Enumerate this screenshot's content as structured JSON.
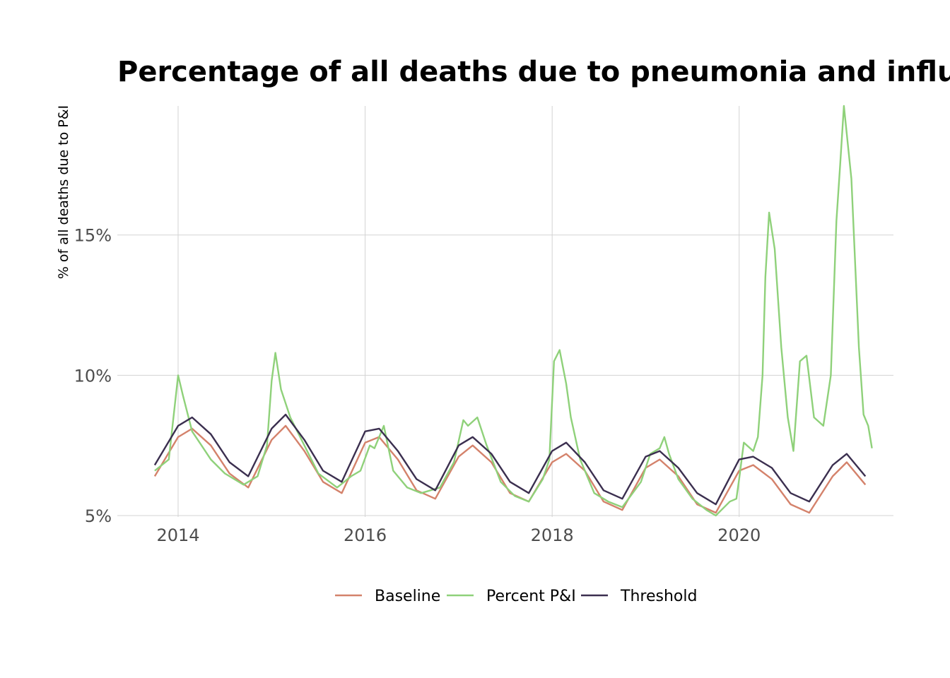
{
  "chart_data": {
    "type": "line",
    "title": "Percentage of all deaths due to pneumonia and influenza, National",
    "xlabel": "",
    "ylabel": "% of all deaths due to P&I",
    "xlim": [
      2013.35,
      2021.65
    ],
    "ylim": [
      4.95,
      19.6
    ],
    "x_ticks": [
      2014,
      2016,
      2018,
      2020
    ],
    "x_tick_labels": [
      "2014",
      "2016",
      "2018",
      "2020"
    ],
    "y_ticks": [
      5,
      10,
      15
    ],
    "y_tick_labels": [
      "5%",
      "10%",
      "15%"
    ],
    "grid": true,
    "legend_position": "bottom",
    "series": [
      {
        "name": "Baseline",
        "color": "#d4826b",
        "x": [
          2013.75,
          2014.0,
          2014.15,
          2014.35,
          2014.55,
          2014.75,
          2015.0,
          2015.15,
          2015.35,
          2015.55,
          2015.75,
          2016.0,
          2016.15,
          2016.35,
          2016.55,
          2016.75,
          2017.0,
          2017.15,
          2017.35,
          2017.55,
          2017.75,
          2018.0,
          2018.15,
          2018.35,
          2018.55,
          2018.75,
          2019.0,
          2019.15,
          2019.35,
          2019.55,
          2019.75,
          2020.0,
          2020.15,
          2020.35,
          2020.55,
          2020.75,
          2021.0,
          2021.15,
          2021.35
        ],
        "values": [
          6.4,
          7.8,
          8.1,
          7.5,
          6.5,
          6.0,
          7.7,
          8.2,
          7.3,
          6.2,
          5.8,
          7.6,
          7.8,
          7.0,
          5.9,
          5.6,
          7.1,
          7.5,
          6.9,
          5.8,
          5.5,
          6.9,
          7.2,
          6.6,
          5.5,
          5.2,
          6.7,
          7.0,
          6.4,
          5.4,
          5.1,
          6.6,
          6.8,
          6.3,
          5.4,
          5.1,
          6.4,
          6.9,
          6.1
        ]
      },
      {
        "name": "Percent P&I",
        "color": "#8fd17a",
        "x": [
          2013.75,
          2013.9,
          2013.95,
          2014.0,
          2014.05,
          2014.15,
          2014.25,
          2014.35,
          2014.5,
          2014.7,
          2014.85,
          2014.95,
          2015.0,
          2015.04,
          2015.1,
          2015.2,
          2015.35,
          2015.5,
          2015.7,
          2015.85,
          2015.95,
          2016.05,
          2016.1,
          2016.2,
          2016.25,
          2016.3,
          2016.45,
          2016.6,
          2016.8,
          2016.95,
          2017.05,
          2017.1,
          2017.2,
          2017.3,
          2017.45,
          2017.6,
          2017.75,
          2017.9,
          2017.97,
          2018.02,
          2018.08,
          2018.15,
          2018.2,
          2018.3,
          2018.45,
          2018.6,
          2018.75,
          2018.95,
          2019.05,
          2019.15,
          2019.2,
          2019.25,
          2019.35,
          2019.5,
          2019.65,
          2019.75,
          2019.9,
          2019.97,
          2020.0,
          2020.05,
          2020.15,
          2020.2,
          2020.25,
          2020.28,
          2020.32,
          2020.38,
          2020.45,
          2020.52,
          2020.58,
          2020.65,
          2020.72,
          2020.8,
          2020.9,
          2020.98,
          2021.04,
          2021.08,
          2021.12,
          2021.2,
          2021.28,
          2021.33,
          2021.38,
          2021.42
        ],
        "values": [
          6.6,
          7.0,
          8.5,
          10.0,
          9.3,
          8.0,
          7.5,
          7.0,
          6.5,
          6.1,
          6.4,
          7.5,
          9.8,
          10.8,
          9.5,
          8.5,
          7.5,
          6.5,
          6.0,
          6.4,
          6.6,
          7.5,
          7.4,
          8.2,
          7.4,
          6.6,
          6.0,
          5.8,
          6.0,
          6.9,
          8.4,
          8.2,
          8.5,
          7.5,
          6.2,
          5.7,
          5.5,
          6.3,
          7.0,
          10.5,
          10.9,
          9.7,
          8.5,
          7.0,
          5.8,
          5.5,
          5.3,
          6.2,
          7.2,
          7.4,
          7.8,
          7.2,
          6.3,
          5.6,
          5.2,
          5.0,
          5.5,
          5.6,
          6.3,
          7.6,
          7.3,
          7.8,
          10.0,
          13.5,
          15.8,
          14.5,
          11.0,
          8.5,
          7.3,
          10.5,
          10.7,
          8.5,
          8.2,
          10.0,
          15.5,
          17.5,
          19.6,
          17.0,
          11.0,
          8.6,
          8.2,
          7.4
        ]
      },
      {
        "name": "Threshold",
        "color": "#3b2f4f",
        "x": [
          2013.75,
          2014.0,
          2014.15,
          2014.35,
          2014.55,
          2014.75,
          2015.0,
          2015.15,
          2015.35,
          2015.55,
          2015.75,
          2016.0,
          2016.15,
          2016.35,
          2016.55,
          2016.75,
          2017.0,
          2017.15,
          2017.35,
          2017.55,
          2017.75,
          2018.0,
          2018.15,
          2018.35,
          2018.55,
          2018.75,
          2019.0,
          2019.15,
          2019.35,
          2019.55,
          2019.75,
          2020.0,
          2020.15,
          2020.35,
          2020.55,
          2020.75,
          2021.0,
          2021.15,
          2021.35
        ],
        "values": [
          6.8,
          8.2,
          8.5,
          7.9,
          6.9,
          6.4,
          8.1,
          8.6,
          7.7,
          6.6,
          6.2,
          8.0,
          8.1,
          7.3,
          6.3,
          5.9,
          7.5,
          7.8,
          7.2,
          6.2,
          5.8,
          7.3,
          7.6,
          6.9,
          5.9,
          5.6,
          7.1,
          7.3,
          6.7,
          5.8,
          5.4,
          7.0,
          7.1,
          6.7,
          5.8,
          5.5,
          6.8,
          7.2,
          6.4
        ]
      }
    ]
  }
}
